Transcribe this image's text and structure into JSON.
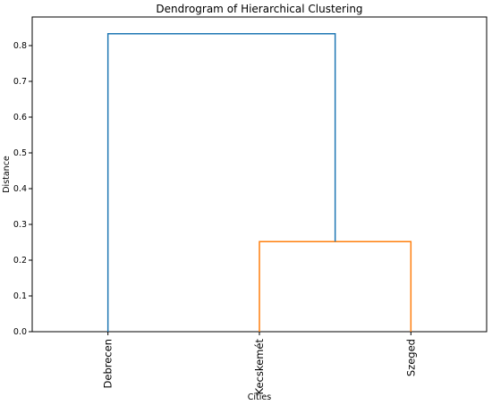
{
  "chart_data": {
    "type": "dendrogram",
    "title": "Dendrogram of Hierarchical Clustering",
    "xlabel": "Cities",
    "ylabel": "Distance",
    "ylim": [
      0,
      0.88
    ],
    "yticks": [
      0.0,
      0.1,
      0.2,
      0.3,
      0.4,
      0.5,
      0.6,
      0.7,
      0.8
    ],
    "ytick_labels": [
      "0.0",
      "0.1",
      "0.2",
      "0.3",
      "0.4",
      "0.5",
      "0.6",
      "0.7",
      "0.8"
    ],
    "leaves": [
      "Debrecen",
      "Kecskemét",
      "Szeged"
    ],
    "merges": [
      {
        "left": "Kecskemét",
        "right": "Szeged",
        "distance": 0.252,
        "color": "#ff7f0e"
      },
      {
        "left": "Debrecen",
        "right": "Kecskemét + Szeged",
        "distance": 0.833,
        "color": "#1f77b4"
      }
    ],
    "grid": false,
    "legend": "none"
  }
}
